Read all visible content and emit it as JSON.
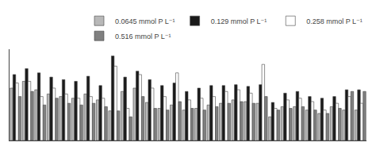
{
  "chart_data": {
    "type": "bar",
    "categories": [
      null,
      null,
      null,
      null,
      null,
      null,
      null,
      null,
      null,
      null,
      null,
      null,
      null,
      null,
      null,
      null,
      null,
      null,
      null,
      null,
      null,
      null,
      null,
      null,
      null,
      null,
      null,
      null,
      null
    ],
    "series": [
      {
        "name": "0.0645 mmol P L⁻¹",
        "color": "#b8b8b8",
        "values": [
          0.62,
          0.7,
          0.6,
          0.55,
          0.52,
          0.5,
          0.55,
          0.48,
          0.35,
          0.58,
          0.62,
          0.45,
          0.38,
          0.42,
          0.36,
          0.38,
          0.42,
          0.44,
          0.48,
          0.46,
          0.44,
          0.28,
          0.4,
          0.4,
          0.36,
          0.32,
          0.4,
          0.36,
          0.36
        ]
      },
      {
        "name": "0.129 mmol P L⁻¹",
        "color": "#1a1a1a",
        "values": [
          0.78,
          0.85,
          0.8,
          0.75,
          0.72,
          0.7,
          0.76,
          0.65,
          1.0,
          0.75,
          0.82,
          0.72,
          0.65,
          0.68,
          0.58,
          0.62,
          0.65,
          0.65,
          0.66,
          0.64,
          0.66,
          0.45,
          0.56,
          0.58,
          0.52,
          0.5,
          0.52,
          0.6,
          0.6
        ]
      },
      {
        "name": "0.258 mmol P L⁻¹",
        "color": "#ffffff",
        "values": [
          0.68,
          0.7,
          0.52,
          0.62,
          0.55,
          0.5,
          0.52,
          0.5,
          0.88,
          0.38,
          0.78,
          0.62,
          0.52,
          0.8,
          0.48,
          0.5,
          0.52,
          0.58,
          0.6,
          0.56,
          0.9,
          0.38,
          0.48,
          0.5,
          0.46,
          0.36,
          0.44,
          0.52,
          0.44
        ]
      },
      {
        "name": "0.516 mmol P L⁻¹",
        "color": "#808080",
        "values": [
          0.52,
          0.58,
          0.42,
          0.5,
          0.44,
          0.42,
          0.44,
          0.4,
          0.35,
          0.28,
          0.52,
          0.38,
          0.36,
          0.46,
          0.38,
          0.36,
          0.4,
          0.44,
          0.46,
          0.44,
          0.52,
          0.36,
          0.38,
          0.4,
          0.36,
          0.32,
          0.38,
          0.58,
          0.58
        ]
      }
    ],
    "ylim": [
      0,
      1.08
    ],
    "yticks": [],
    "grid": false,
    "legend": "upper right",
    "tick_labels": false
  }
}
